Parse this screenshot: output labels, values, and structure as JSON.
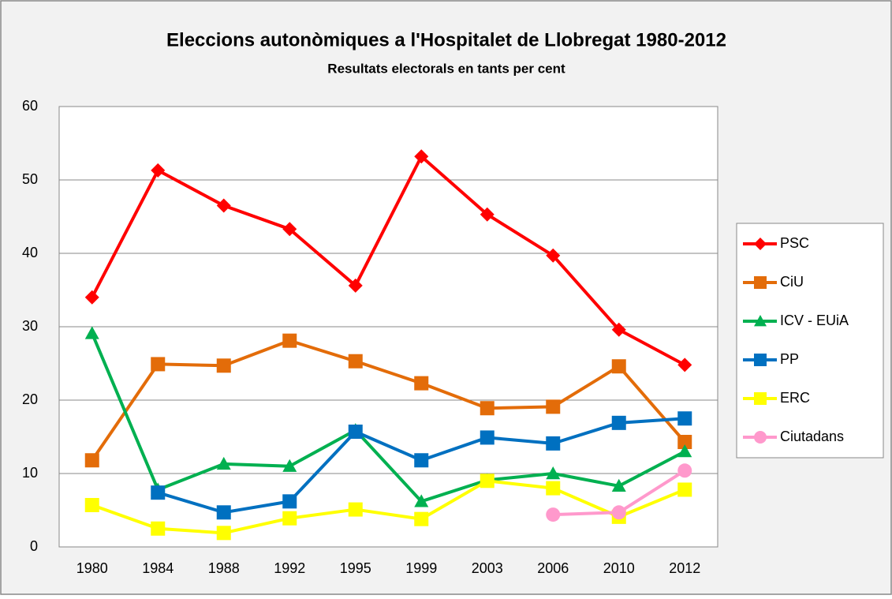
{
  "chart_data": {
    "type": "line",
    "title": "Eleccions autonòmiques a l'Hospitalet de Llobregat 1980-2012",
    "subtitle": "Resultats electorals en tants per cent",
    "categories": [
      "1980",
      "1984",
      "1988",
      "1992",
      "1995",
      "1999",
      "2003",
      "2006",
      "2010",
      "2012"
    ],
    "series": [
      {
        "name": "PSC",
        "color": "#ff0000",
        "marker": "diamond",
        "values": [
          34.0,
          51.3,
          46.5,
          43.3,
          35.6,
          53.2,
          45.3,
          39.7,
          29.6,
          24.8
        ]
      },
      {
        "name": "CiU",
        "color": "#e36c09",
        "marker": "square",
        "values": [
          11.8,
          24.9,
          24.7,
          28.1,
          25.3,
          22.3,
          18.9,
          19.1,
          24.6,
          14.3
        ]
      },
      {
        "name": "ICV - EUiA",
        "color": "#00b050",
        "marker": "triangle",
        "values": [
          29.1,
          7.8,
          11.3,
          11.0,
          15.9,
          6.2,
          9.1,
          10.0,
          8.3,
          13.0
        ]
      },
      {
        "name": "PP",
        "color": "#0070c0",
        "marker": "square",
        "values": [
          null,
          7.4,
          4.7,
          6.2,
          15.7,
          11.8,
          14.9,
          14.1,
          16.9,
          17.5
        ]
      },
      {
        "name": "ERC",
        "color": "#ffff00",
        "marker": "square",
        "values": [
          5.7,
          2.5,
          1.9,
          3.9,
          5.1,
          3.8,
          9.0,
          8.0,
          4.1,
          7.8
        ]
      },
      {
        "name": "Ciutadans",
        "color": "#ff99cc",
        "marker": "circle",
        "values": [
          null,
          null,
          null,
          null,
          null,
          null,
          null,
          4.4,
          4.7,
          10.4
        ]
      }
    ],
    "ylim": [
      0,
      60
    ],
    "yticks": [
      0,
      10,
      20,
      30,
      40,
      50,
      60
    ],
    "grid": true,
    "legend": "right"
  }
}
